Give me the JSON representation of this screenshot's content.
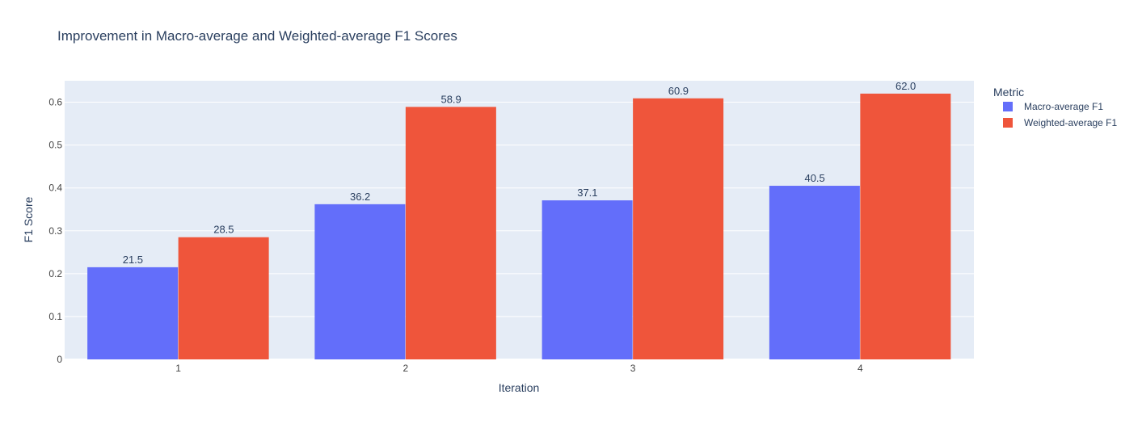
{
  "chart_data": {
    "type": "bar",
    "title": "Improvement in Macro-average and Weighted-average F1 Scores",
    "xlabel": "Iteration",
    "ylabel": "F1 Score",
    "categories": [
      "1",
      "2",
      "3",
      "4"
    ],
    "ylim": [
      0,
      0.65
    ],
    "yticks": [
      0,
      0.1,
      0.2,
      0.3,
      0.4,
      0.5,
      0.6
    ],
    "ytick_labels": [
      "0",
      "0.1",
      "0.2",
      "0.3",
      "0.4",
      "0.5",
      "0.6"
    ],
    "grid": true,
    "legend": {
      "title": "Metric",
      "placement": "right"
    },
    "series": [
      {
        "name": "Macro-average F1",
        "values": [
          0.215,
          0.362,
          0.371,
          0.405
        ],
        "labels": [
          "21.5",
          "36.2",
          "37.1",
          "40.5"
        ],
        "color": "#636efa"
      },
      {
        "name": "Weighted-average F1",
        "values": [
          0.285,
          0.589,
          0.609,
          0.62
        ],
        "labels": [
          "28.5",
          "58.9",
          "60.9",
          "62.0"
        ],
        "color": "#ef553b"
      }
    ],
    "colors": {
      "plot_background": "#e5ecf6",
      "gridline": "#ffffff",
      "text": "#2a3f5f",
      "tick_text": "#444444"
    }
  }
}
